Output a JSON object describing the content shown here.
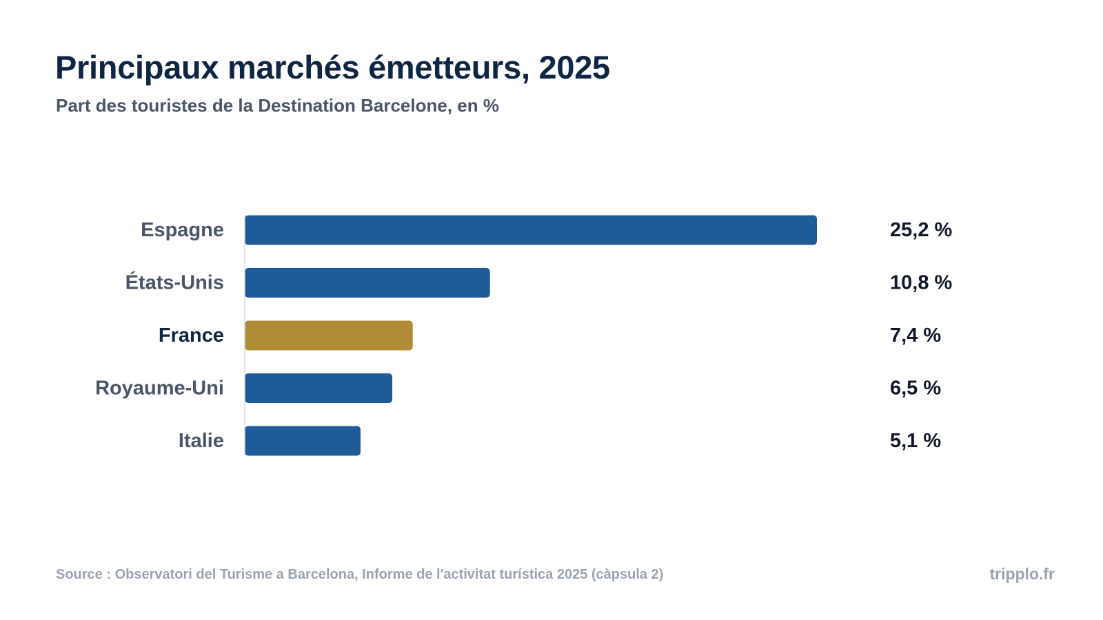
{
  "header": {
    "title": "Principaux marchés émetteurs, 2025",
    "subtitle": "Part des touristes de la Destination Barcelone, en %"
  },
  "footer": {
    "source": "Source : Observatori del Turisme a Barcelona, Informe de l'activitat turística 2025 (càpsula 2)",
    "brand": "tripplo.fr"
  },
  "colors": {
    "bar_default": "#1f5b99",
    "bar_highlight": "#ae8b35"
  },
  "chart_data": {
    "type": "bar",
    "orientation": "horizontal",
    "title": "Principaux marchés émetteurs, 2025",
    "subtitle": "Part des touristes de la Destination Barcelone, en %",
    "categories": [
      "Espagne",
      "États-Unis",
      "France",
      "Royaume-Uni",
      "Italie"
    ],
    "values": [
      25.2,
      10.8,
      7.4,
      6.5,
      5.1
    ],
    "value_labels": [
      "25,2 %",
      "10,8 %",
      "7,4 %",
      "6,5 %",
      "5,1 %"
    ],
    "highlight": "France",
    "xlim": [
      0,
      25.2
    ],
    "grid": false,
    "legend": "none"
  }
}
